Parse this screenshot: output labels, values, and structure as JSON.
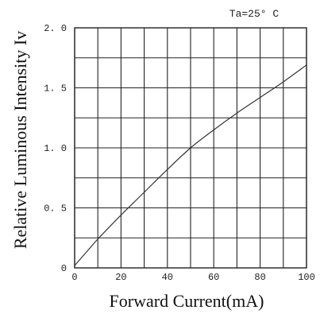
{
  "chart_data": {
    "type": "line",
    "title": "",
    "annotation": "Ta=25° C",
    "xlabel": "Forward Current(mA)",
    "ylabel": "Relative Luminous Intensity Iv",
    "xlim": [
      0,
      100
    ],
    "ylim": [
      0,
      2.0
    ],
    "x_ticks": [
      0,
      10,
      20,
      30,
      40,
      50,
      60,
      70,
      80,
      90,
      100
    ],
    "x_tick_labels": [
      "0",
      "",
      "20",
      "",
      "40",
      "",
      "60",
      "",
      "80",
      "",
      "100"
    ],
    "y_ticks": [
      0,
      0.25,
      0.5,
      0.75,
      1.0,
      1.25,
      1.5,
      1.75,
      2.0
    ],
    "y_tick_labels": [
      "0",
      "",
      "0. 5",
      "",
      "1. 0",
      "",
      "1. 5",
      "",
      "2. 0"
    ],
    "grid": true,
    "series": [
      {
        "color": "#333333",
        "x": [
          0,
          5,
          10,
          20,
          30,
          40,
          50,
          60,
          70,
          80,
          90,
          100
        ],
        "y": [
          0.02,
          0.13,
          0.24,
          0.44,
          0.63,
          0.82,
          1.0,
          1.15,
          1.29,
          1.42,
          1.55,
          1.69
        ]
      }
    ]
  }
}
